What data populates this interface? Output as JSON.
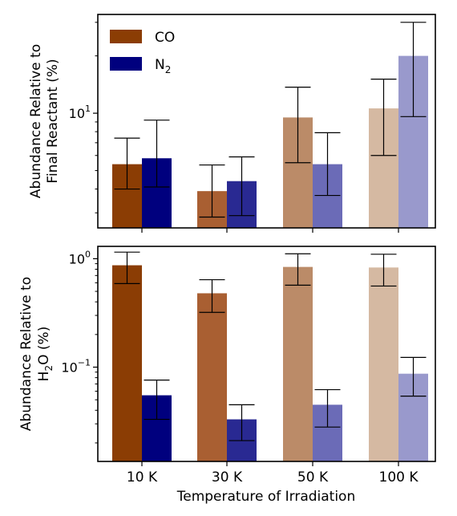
{
  "chart_data": [
    {
      "type": "bar",
      "scale": "log",
      "categories": [
        "10 K",
        "30 K",
        "50 K",
        "100 K"
      ],
      "ylabel_line1": "Abundance Relative to",
      "ylabel_line2": "Final Reactant (%)",
      "ylim": [
        2.5,
        33
      ],
      "yticks": [
        {
          "value": 10,
          "base": "10",
          "exp": "1"
        }
      ],
      "legend": {
        "placement": "top-left",
        "items": [
          {
            "label": "CO",
            "sub": "",
            "color": "#8b3d04"
          },
          {
            "label": "N",
            "sub": "2",
            "color": "#00007e"
          }
        ]
      },
      "series": [
        {
          "name": "CO",
          "values": [
            5.4,
            3.9,
            9.5,
            10.6
          ],
          "errors_low": [
            4.0,
            2.85,
            5.5,
            6.0
          ],
          "errors_high": [
            7.4,
            5.35,
            13.7,
            15.1
          ],
          "colors": [
            "#8b3d04",
            "#a95f32",
            "#bb8b68",
            "#d5b9a2"
          ]
        },
        {
          "name": "N2",
          "values": [
            5.8,
            4.4,
            5.4,
            20.0
          ],
          "errors_low": [
            4.1,
            2.9,
            3.7,
            9.6
          ],
          "errors_high": [
            9.2,
            5.9,
            7.9,
            30.0
          ],
          "colors": [
            "#00007e",
            "#292992",
            "#6b6bb7",
            "#9999cc"
          ]
        }
      ]
    },
    {
      "type": "bar",
      "scale": "log",
      "categories": [
        "10 K",
        "30 K",
        "50 K",
        "100 K"
      ],
      "xlabel": "Temperature of Irradiation",
      "ylabel_line1": "Abundance Relative to",
      "ylabel_line2_pre": "H",
      "ylabel_line2_sub": "2",
      "ylabel_line2_post": "O (%)",
      "ylim": [
        0.0135,
        1.3
      ],
      "yticks": [
        {
          "value": 1,
          "base": "10",
          "exp": "0"
        },
        {
          "value": 0.1,
          "base": "10",
          "exp": "−1"
        }
      ],
      "series": [
        {
          "name": "CO",
          "values": [
            0.87,
            0.48,
            0.84,
            0.83
          ],
          "errors_low": [
            0.59,
            0.32,
            0.57,
            0.56
          ],
          "errors_high": [
            1.15,
            0.64,
            1.11,
            1.1
          ],
          "colors": [
            "#8b3d04",
            "#a95f32",
            "#bb8b68",
            "#d5b9a2"
          ]
        },
        {
          "name": "N2",
          "values": [
            0.055,
            0.033,
            0.045,
            0.087
          ],
          "errors_low": [
            0.033,
            0.021,
            0.028,
            0.054
          ],
          "errors_high": [
            0.076,
            0.045,
            0.062,
            0.123
          ],
          "colors": [
            "#00007e",
            "#292992",
            "#6b6bb7",
            "#9999cc"
          ]
        }
      ]
    }
  ]
}
